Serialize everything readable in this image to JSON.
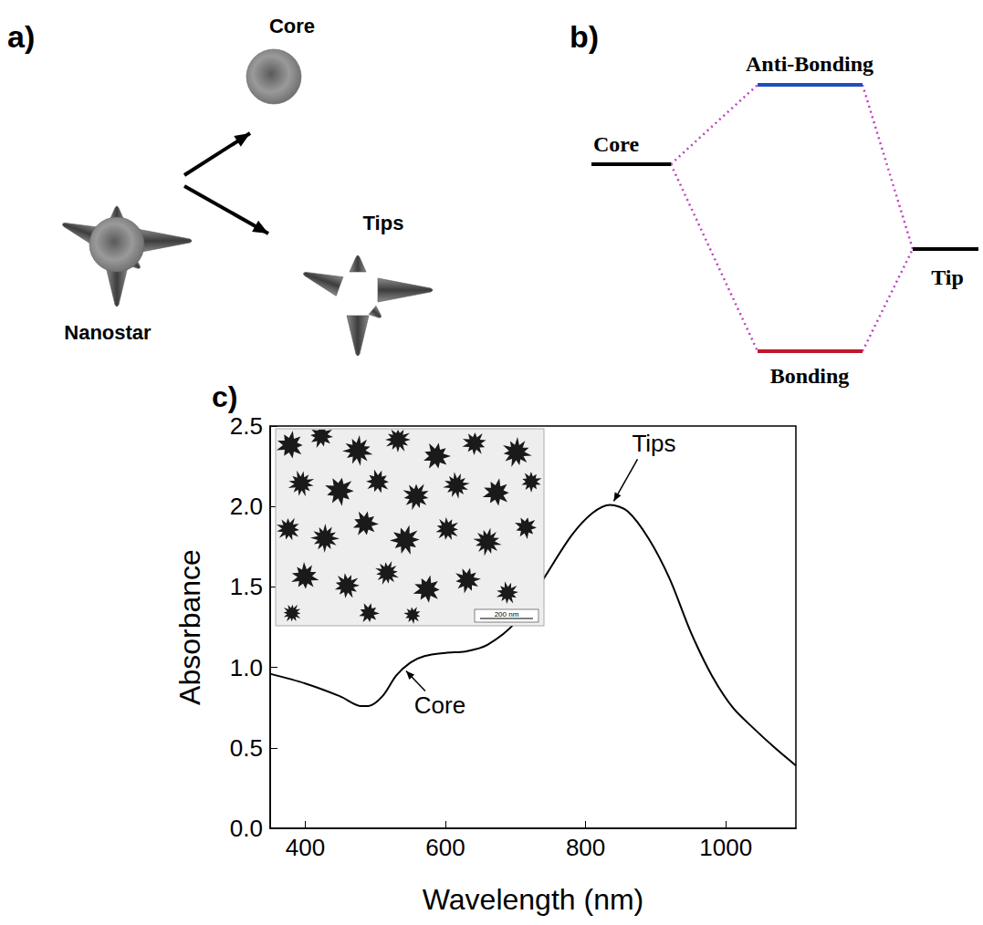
{
  "panels": {
    "a": {
      "label": "a)",
      "nodes": [
        {
          "label": "Nanostar"
        },
        {
          "label": "Core"
        },
        {
          "label": "Tips"
        }
      ]
    },
    "b": {
      "label": "b)",
      "levels": [
        {
          "label": "Core",
          "color": "#000000"
        },
        {
          "label": "Anti-Bonding",
          "color": "#1f4fbf"
        },
        {
          "label": "Bonding",
          "color": "#c0182a"
        },
        {
          "label": "Tip",
          "color": "#000000"
        }
      ]
    },
    "c": {
      "label": "c)",
      "inset": {
        "scale_bar": "200 nm"
      }
    }
  },
  "chart_data": {
    "type": "line",
    "xlabel": "Wavelength (nm)",
    "ylabel": "Absorbance",
    "color": "#000000",
    "grid": false,
    "x": [
      350,
      400,
      450,
      480,
      490,
      510,
      530,
      550,
      570,
      600,
      630,
      660,
      700,
      740,
      780,
      810,
      835,
      860,
      890,
      920,
      950,
      980,
      1010,
      1040,
      1070,
      1100
    ],
    "values": [
      0.96,
      0.9,
      0.82,
      0.76,
      0.76,
      0.82,
      0.95,
      1.03,
      1.07,
      1.09,
      1.1,
      1.14,
      1.28,
      1.55,
      1.82,
      1.96,
      2.01,
      1.97,
      1.8,
      1.55,
      1.22,
      0.95,
      0.75,
      0.62,
      0.5,
      0.39
    ],
    "xlim": [
      350,
      1100
    ],
    "xticks": [
      400,
      600,
      800,
      1000
    ],
    "ylim": [
      0,
      2.5
    ],
    "yticks": [
      {
        "value": 0,
        "label": "0.0"
      },
      {
        "value": 0.5,
        "label": "0.5"
      },
      {
        "value": 1,
        "label": "1.0"
      },
      {
        "value": 1.5,
        "label": "1.5"
      },
      {
        "value": 2,
        "label": "2.0"
      },
      {
        "value": 2.5,
        "label": "2.5"
      }
    ],
    "annotations": [
      {
        "text": "Tips",
        "x": 835,
        "y": 2.01
      },
      {
        "text": "Core",
        "x": 540,
        "y": 1.0
      }
    ]
  }
}
